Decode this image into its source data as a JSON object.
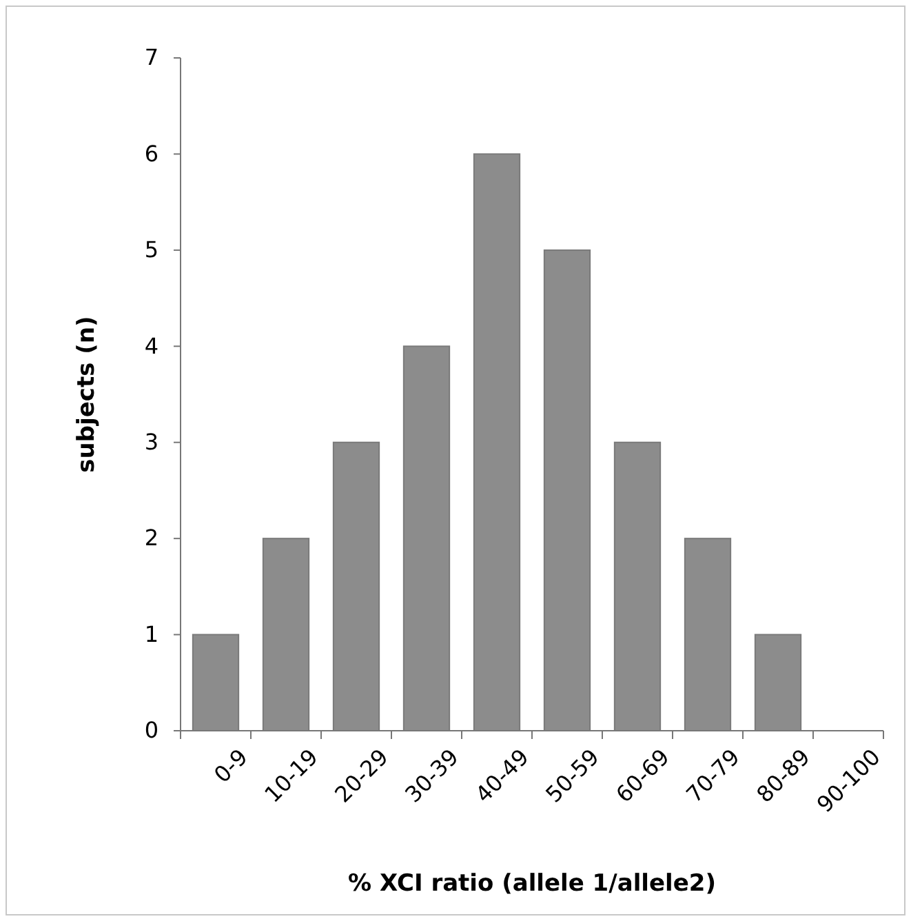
{
  "chart_data": {
    "type": "bar",
    "xlabel": "% XCI ratio (allele 1/allele2)",
    "ylabel": "subjects (n)",
    "categories": [
      "0-9",
      "10-19",
      "20-29",
      "30-39",
      "40-49",
      "50-59",
      "60-69",
      "70-79",
      "80-89",
      "90-100"
    ],
    "values": [
      1,
      2,
      3,
      4,
      6,
      5,
      3,
      2,
      1,
      0
    ],
    "color": "#8c8c8c",
    "ylim": [
      0,
      7
    ],
    "yticks": [
      0,
      1,
      2,
      3,
      4,
      5,
      6,
      7
    ]
  }
}
